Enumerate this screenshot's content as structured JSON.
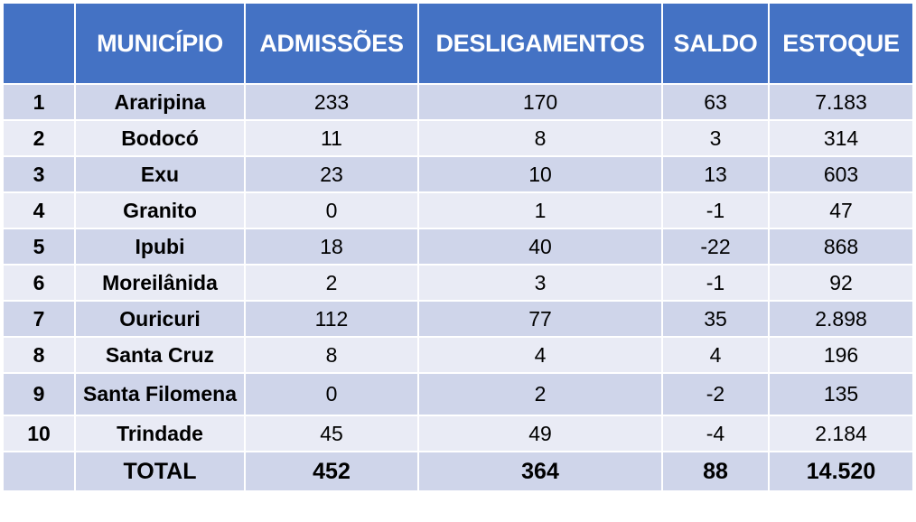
{
  "table": {
    "headers": [
      "",
      "MUNICÍPIO",
      "ADMISSÕES",
      "DESLIGAMENTOS",
      "SALDO",
      "ESTOQUE"
    ],
    "rows": [
      {
        "rank": "1",
        "municipio": "Araripina",
        "admissoes": "233",
        "desligamentos": "170",
        "saldo": "63",
        "estoque": "7.183"
      },
      {
        "rank": "2",
        "municipio": "Bodocó",
        "admissoes": "11",
        "desligamentos": "8",
        "saldo": "3",
        "estoque": "314"
      },
      {
        "rank": "3",
        "municipio": "Exu",
        "admissoes": "23",
        "desligamentos": "10",
        "saldo": "13",
        "estoque": "603"
      },
      {
        "rank": "4",
        "municipio": "Granito",
        "admissoes": "0",
        "desligamentos": "1",
        "saldo": "-1",
        "estoque": "47"
      },
      {
        "rank": "5",
        "municipio": "Ipubi",
        "admissoes": "18",
        "desligamentos": "40",
        "saldo": "-22",
        "estoque": "868"
      },
      {
        "rank": "6",
        "municipio": "Moreilânida",
        "admissoes": "2",
        "desligamentos": "3",
        "saldo": "-1",
        "estoque": "92"
      },
      {
        "rank": "7",
        "municipio": "Ouricuri",
        "admissoes": "112",
        "desligamentos": "77",
        "saldo": "35",
        "estoque": "2.898"
      },
      {
        "rank": "8",
        "municipio": "Santa Cruz",
        "admissoes": "8",
        "desligamentos": "4",
        "saldo": "4",
        "estoque": "196"
      },
      {
        "rank": "9",
        "municipio": "Santa Filomena",
        "admissoes": "0",
        "desligamentos": "2",
        "saldo": "-2",
        "estoque": "135"
      },
      {
        "rank": "10",
        "municipio": "Trindade",
        "admissoes": "45",
        "desligamentos": "49",
        "saldo": "-4",
        "estoque": "2.184"
      }
    ],
    "total": {
      "label": "TOTAL",
      "admissoes": "452",
      "desligamentos": "364",
      "saldo": "88",
      "estoque": "14.520"
    }
  },
  "colors": {
    "header_bg": "#4472c4",
    "header_text": "#ffffff",
    "row_dark": "#cfd5ea",
    "row_light": "#e9ebf5"
  }
}
